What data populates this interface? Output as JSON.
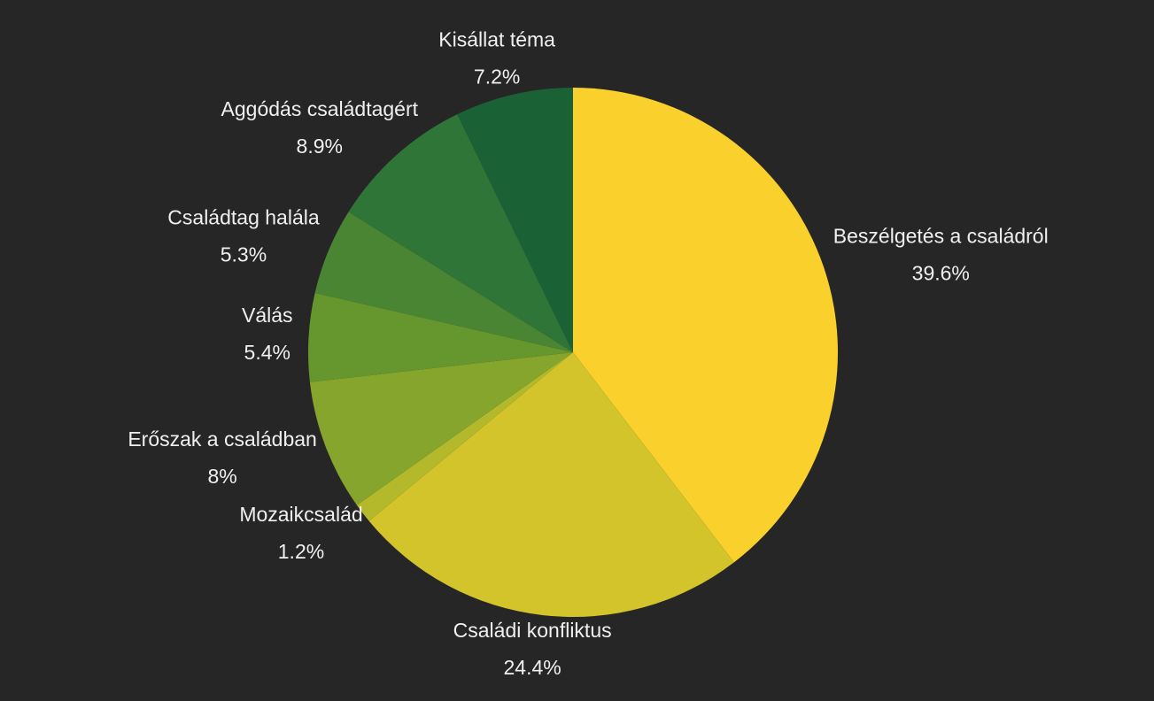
{
  "chart_data": {
    "type": "pie",
    "categories": [
      "Beszélgetés a családról",
      "Családi konfliktus",
      "Mozaikcsalád",
      "Erőszak a családban",
      "Válás",
      "Családtag halála",
      "Aggódás családtagért",
      "Kisállat téma"
    ],
    "values": [
      39.6,
      24.4,
      1.2,
      8,
      5.4,
      5.3,
      8.9,
      7.2
    ],
    "value_labels": [
      "39.6%",
      "24.4%",
      "1.2%",
      "8%",
      "5.4%",
      "5.3%",
      "8.9%",
      "7.2%"
    ],
    "colors": [
      "#f9d02c",
      "#d2c42a",
      "#b3b92b",
      "#86a52c",
      "#66972f",
      "#4a8533",
      "#2e7537",
      "#1b6136"
    ]
  }
}
